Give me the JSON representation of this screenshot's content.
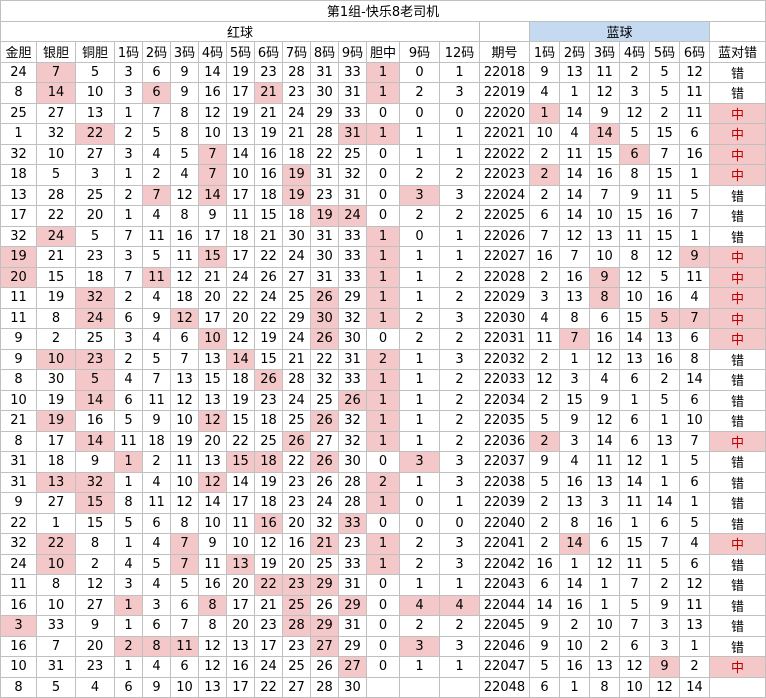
{
  "title": "第1组-快乐8老司机",
  "groups": {
    "red": "红球",
    "blue": "蓝球"
  },
  "headers": [
    "金胆",
    "银胆",
    "铜胆",
    "1码",
    "2码",
    "3码",
    "4码",
    "5码",
    "6码",
    "7码",
    "8码",
    "9码",
    "胆中",
    "9码",
    "12码",
    "期号",
    "1码",
    "2码",
    "3码",
    "4码",
    "5码",
    "6码",
    "蓝对错"
  ],
  "rows": [
    {
      "v": [
        "24",
        "7",
        "5",
        "3",
        "6",
        "9",
        "14",
        "19",
        "23",
        "28",
        "31",
        "33",
        "1",
        "0",
        "1",
        "22018",
        "9",
        "13",
        "11",
        "2",
        "5",
        "12",
        "错"
      ],
      "h": [
        1,
        12
      ]
    },
    {
      "v": [
        "8",
        "14",
        "10",
        "3",
        "6",
        "9",
        "16",
        "17",
        "21",
        "23",
        "30",
        "31",
        "1",
        "2",
        "3",
        "22019",
        "4",
        "1",
        "12",
        "3",
        "5",
        "11",
        "错"
      ],
      "h": [
        1,
        4,
        8,
        12
      ]
    },
    {
      "v": [
        "25",
        "27",
        "13",
        "1",
        "7",
        "8",
        "12",
        "19",
        "21",
        "24",
        "29",
        "33",
        "0",
        "0",
        "0",
        "22020",
        "1",
        "14",
        "9",
        "12",
        "2",
        "11",
        "中"
      ],
      "h": [
        16,
        22
      ]
    },
    {
      "v": [
        "1",
        "32",
        "22",
        "2",
        "5",
        "8",
        "10",
        "13",
        "19",
        "21",
        "28",
        "31",
        "1",
        "1",
        "1",
        "22021",
        "10",
        "4",
        "14",
        "5",
        "15",
        "6",
        "中"
      ],
      "h": [
        2,
        11,
        12,
        18,
        22
      ]
    },
    {
      "v": [
        "32",
        "10",
        "27",
        "3",
        "4",
        "5",
        "7",
        "14",
        "16",
        "18",
        "22",
        "25",
        "0",
        "1",
        "1",
        "22022",
        "2",
        "11",
        "15",
        "6",
        "7",
        "16",
        "中"
      ],
      "h": [
        6,
        19,
        22
      ]
    },
    {
      "v": [
        "18",
        "5",
        "3",
        "1",
        "2",
        "4",
        "7",
        "10",
        "16",
        "19",
        "31",
        "32",
        "0",
        "2",
        "2",
        "22023",
        "2",
        "14",
        "16",
        "8",
        "15",
        "1",
        "中"
      ],
      "h": [
        6,
        9,
        16,
        22
      ]
    },
    {
      "v": [
        "13",
        "28",
        "25",
        "2",
        "7",
        "12",
        "14",
        "17",
        "18",
        "19",
        "23",
        "31",
        "0",
        "3",
        "3",
        "22024",
        "2",
        "14",
        "7",
        "9",
        "11",
        "5",
        "错"
      ],
      "h": [
        4,
        6,
        9,
        13
      ]
    },
    {
      "v": [
        "17",
        "22",
        "20",
        "1",
        "4",
        "8",
        "9",
        "11",
        "15",
        "18",
        "19",
        "24",
        "0",
        "2",
        "2",
        "22025",
        "6",
        "14",
        "10",
        "15",
        "16",
        "7",
        "错"
      ],
      "h": [
        10,
        11
      ]
    },
    {
      "v": [
        "32",
        "24",
        "5",
        "7",
        "11",
        "16",
        "17",
        "18",
        "21",
        "30",
        "31",
        "33",
        "1",
        "0",
        "1",
        "22026",
        "7",
        "12",
        "13",
        "11",
        "15",
        "1",
        "错"
      ],
      "h": [
        1,
        12
      ]
    },
    {
      "v": [
        "19",
        "21",
        "23",
        "3",
        "5",
        "11",
        "15",
        "17",
        "22",
        "24",
        "30",
        "33",
        "1",
        "1",
        "1",
        "22027",
        "16",
        "7",
        "10",
        "8",
        "12",
        "9",
        "中"
      ],
      "h": [
        0,
        6,
        12,
        21,
        22
      ]
    },
    {
      "v": [
        "20",
        "15",
        "18",
        "7",
        "11",
        "12",
        "21",
        "24",
        "26",
        "27",
        "31",
        "33",
        "1",
        "1",
        "2",
        "22028",
        "2",
        "16",
        "9",
        "12",
        "5",
        "11",
        "中"
      ],
      "h": [
        0,
        4,
        12,
        18,
        22
      ]
    },
    {
      "v": [
        "11",
        "19",
        "32",
        "2",
        "4",
        "18",
        "20",
        "22",
        "24",
        "25",
        "26",
        "29",
        "1",
        "1",
        "2",
        "22029",
        "3",
        "13",
        "8",
        "10",
        "16",
        "4",
        "中"
      ],
      "h": [
        2,
        10,
        12,
        18,
        22
      ]
    },
    {
      "v": [
        "11",
        "8",
        "24",
        "6",
        "9",
        "12",
        "17",
        "20",
        "22",
        "29",
        "30",
        "32",
        "1",
        "2",
        "3",
        "22030",
        "4",
        "8",
        "6",
        "15",
        "5",
        "7",
        "中"
      ],
      "h": [
        2,
        5,
        10,
        12,
        20,
        21,
        22
      ]
    },
    {
      "v": [
        "9",
        "2",
        "25",
        "3",
        "4",
        "6",
        "10",
        "12",
        "19",
        "24",
        "26",
        "30",
        "0",
        "2",
        "2",
        "22031",
        "11",
        "7",
        "16",
        "14",
        "13",
        "6",
        "中"
      ],
      "h": [
        6,
        10,
        17,
        22
      ]
    },
    {
      "v": [
        "9",
        "10",
        "23",
        "2",
        "5",
        "7",
        "13",
        "14",
        "15",
        "21",
        "22",
        "31",
        "2",
        "1",
        "3",
        "22032",
        "2",
        "1",
        "12",
        "13",
        "16",
        "8",
        "错"
      ],
      "h": [
        1,
        2,
        7,
        12
      ]
    },
    {
      "v": [
        "8",
        "30",
        "5",
        "4",
        "7",
        "13",
        "15",
        "18",
        "26",
        "28",
        "32",
        "33",
        "1",
        "1",
        "2",
        "22033",
        "12",
        "3",
        "4",
        "6",
        "2",
        "14",
        "错"
      ],
      "h": [
        2,
        8,
        12
      ]
    },
    {
      "v": [
        "10",
        "19",
        "14",
        "6",
        "11",
        "12",
        "13",
        "19",
        "23",
        "24",
        "25",
        "26",
        "1",
        "1",
        "2",
        "22034",
        "2",
        "15",
        "9",
        "1",
        "5",
        "6",
        "错"
      ],
      "h": [
        2,
        11,
        12
      ]
    },
    {
      "v": [
        "21",
        "19",
        "16",
        "5",
        "9",
        "10",
        "12",
        "15",
        "18",
        "25",
        "26",
        "32",
        "1",
        "1",
        "2",
        "22035",
        "5",
        "9",
        "12",
        "6",
        "1",
        "10",
        "错"
      ],
      "h": [
        1,
        6,
        10,
        12
      ]
    },
    {
      "v": [
        "8",
        "17",
        "14",
        "11",
        "18",
        "19",
        "20",
        "22",
        "25",
        "26",
        "27",
        "32",
        "1",
        "1",
        "2",
        "22036",
        "2",
        "3",
        "14",
        "6",
        "13",
        "7",
        "中"
      ],
      "h": [
        2,
        9,
        12,
        16,
        22
      ]
    },
    {
      "v": [
        "31",
        "18",
        "9",
        "1",
        "2",
        "11",
        "13",
        "15",
        "18",
        "22",
        "26",
        "30",
        "0",
        "3",
        "3",
        "22037",
        "9",
        "4",
        "11",
        "12",
        "1",
        "5",
        "错"
      ],
      "h": [
        3,
        7,
        8,
        10,
        13
      ]
    },
    {
      "v": [
        "31",
        "13",
        "32",
        "1",
        "4",
        "10",
        "12",
        "14",
        "19",
        "23",
        "26",
        "28",
        "2",
        "1",
        "3",
        "22038",
        "5",
        "16",
        "13",
        "14",
        "1",
        "6",
        "错"
      ],
      "h": [
        1,
        2,
        6,
        12
      ]
    },
    {
      "v": [
        "9",
        "27",
        "15",
        "8",
        "11",
        "12",
        "14",
        "17",
        "18",
        "23",
        "24",
        "28",
        "1",
        "0",
        "1",
        "22039",
        "2",
        "13",
        "3",
        "11",
        "14",
        "1",
        "错"
      ],
      "h": [
        2,
        12
      ]
    },
    {
      "v": [
        "22",
        "1",
        "15",
        "5",
        "6",
        "8",
        "10",
        "11",
        "16",
        "20",
        "32",
        "33",
        "0",
        "0",
        "0",
        "22040",
        "2",
        "8",
        "16",
        "1",
        "6",
        "5",
        "错"
      ],
      "h": [
        8,
        11
      ]
    },
    {
      "v": [
        "32",
        "22",
        "8",
        "1",
        "4",
        "7",
        "9",
        "10",
        "12",
        "16",
        "21",
        "23",
        "1",
        "2",
        "3",
        "22041",
        "2",
        "14",
        "6",
        "15",
        "7",
        "4",
        "中"
      ],
      "h": [
        1,
        5,
        10,
        12,
        17,
        22
      ]
    },
    {
      "v": [
        "24",
        "10",
        "2",
        "4",
        "5",
        "7",
        "11",
        "13",
        "19",
        "20",
        "25",
        "33",
        "1",
        "2",
        "3",
        "22042",
        "16",
        "1",
        "12",
        "11",
        "5",
        "6",
        "错"
      ],
      "h": [
        1,
        5,
        7,
        12
      ]
    },
    {
      "v": [
        "11",
        "8",
        "12",
        "3",
        "4",
        "5",
        "16",
        "20",
        "22",
        "23",
        "29",
        "31",
        "0",
        "1",
        "1",
        "22043",
        "6",
        "14",
        "1",
        "7",
        "2",
        "12",
        "错"
      ],
      "h": [
        8,
        9,
        10
      ]
    },
    {
      "v": [
        "16",
        "10",
        "27",
        "1",
        "3",
        "6",
        "8",
        "17",
        "21",
        "25",
        "26",
        "29",
        "0",
        "4",
        "4",
        "22044",
        "14",
        "16",
        "1",
        "5",
        "9",
        "11",
        "错"
      ],
      "h": [
        3,
        6,
        9,
        11,
        13,
        14
      ]
    },
    {
      "v": [
        "3",
        "33",
        "9",
        "1",
        "6",
        "7",
        "8",
        "20",
        "23",
        "28",
        "29",
        "31",
        "0",
        "2",
        "2",
        "22045",
        "9",
        "2",
        "10",
        "7",
        "3",
        "13",
        "错"
      ],
      "h": [
        0,
        9,
        10
      ]
    },
    {
      "v": [
        "16",
        "7",
        "20",
        "2",
        "8",
        "11",
        "12",
        "13",
        "17",
        "23",
        "27",
        "29",
        "0",
        "3",
        "3",
        "22046",
        "9",
        "10",
        "2",
        "6",
        "3",
        "1",
        "错"
      ],
      "h": [
        3,
        4,
        5,
        10,
        13
      ]
    },
    {
      "v": [
        "10",
        "31",
        "23",
        "1",
        "4",
        "6",
        "12",
        "16",
        "24",
        "25",
        "26",
        "27",
        "0",
        "1",
        "1",
        "22047",
        "5",
        "16",
        "13",
        "12",
        "9",
        "2",
        "中"
      ],
      "h": [
        11,
        20,
        22
      ]
    },
    {
      "v": [
        "8",
        "5",
        "4",
        "6",
        "9",
        "10",
        "13",
        "17",
        "22",
        "27",
        "28",
        "30",
        "",
        "",
        "",
        "22048",
        "6",
        "1",
        "8",
        "10",
        "12",
        "14",
        ""
      ],
      "h": []
    }
  ]
}
